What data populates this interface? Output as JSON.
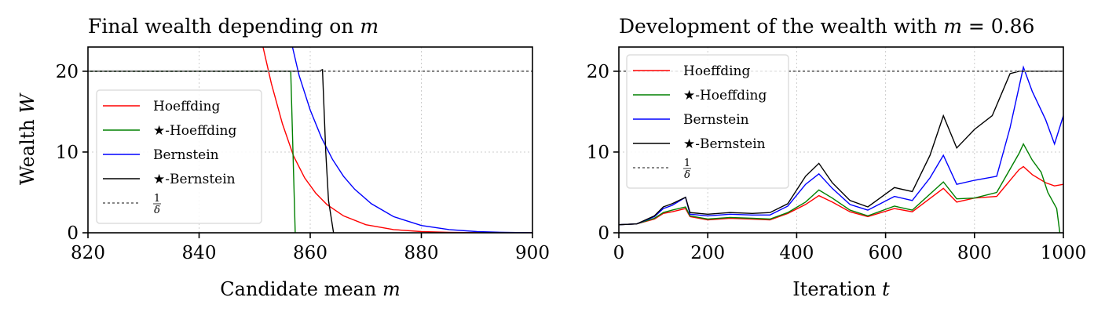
{
  "chart_data": [
    {
      "type": "line",
      "title": "Final wealth depending on m",
      "title_text": "Final wealth depending on ",
      "title_var": "m",
      "xlabel": "Candidate mean m",
      "xlabel_text": "Candidate mean ",
      "xlabel_var": "m",
      "ylabel": "Wealth W",
      "ylabel_text": "Wealth ",
      "ylabel_var": "W",
      "xlim": [
        820,
        900
      ],
      "ylim": [
        0,
        23
      ],
      "xticks": [
        "820",
        "840",
        "860",
        "880",
        "900"
      ],
      "yticks": [
        "0",
        "10",
        "20"
      ],
      "grid": true,
      "legend_position": "center-left",
      "threshold": 20,
      "series": [
        {
          "name": "Hoeffding",
          "color": "#ff0000",
          "x": [
            851.5,
            853,
            855,
            857,
            859,
            861,
            863,
            866,
            870,
            875,
            880,
            885,
            890,
            895,
            900
          ],
          "y": [
            23,
            18.5,
            13.5,
            9.5,
            6.8,
            4.9,
            3.5,
            2.1,
            1.0,
            0.4,
            0.15,
            0.05,
            0.02,
            0.01,
            0
          ]
        },
        {
          "name": "★-Hoeffding",
          "color": "#008000",
          "x": [
            820,
            856.5,
            857.3
          ],
          "y": [
            20,
            20,
            0
          ]
        },
        {
          "name": "Bernstein",
          "color": "#0000ff",
          "x": [
            856.8,
            858,
            860,
            862,
            864,
            866,
            868,
            871,
            875,
            880,
            885,
            890,
            895,
            900
          ],
          "y": [
            23,
            19.5,
            15.2,
            11.8,
            9.1,
            7.0,
            5.4,
            3.6,
            2.0,
            0.9,
            0.4,
            0.15,
            0.05,
            0
          ]
        },
        {
          "name": "★-Bernstein",
          "color": "#000000",
          "x": [
            820,
            861.5,
            862.2,
            862.8,
            863.3,
            864.2
          ],
          "y": [
            20,
            20,
            20.2,
            10,
            4,
            0
          ]
        },
        {
          "name": "1/δ",
          "color": "#888888",
          "x": [
            820,
            900
          ],
          "y": [
            20,
            20
          ]
        }
      ]
    },
    {
      "type": "line",
      "title": "Development of the wealth with m = 0.86",
      "title_text": "Development of the wealth with ",
      "title_var": "m",
      "title_rest": " = 0.86",
      "xlabel": "Iteration t",
      "xlabel_text": "Iteration ",
      "xlabel_var": "t",
      "xlim": [
        0,
        1000
      ],
      "ylim": [
        0,
        23
      ],
      "xticks": [
        "0",
        "200",
        "400",
        "600",
        "800",
        "1000"
      ],
      "yticks": [
        "0",
        "10",
        "20"
      ],
      "grid": true,
      "legend_position": "upper-left",
      "threshold": 20,
      "series": [
        {
          "name": "Hoeffding",
          "color": "#ff0000",
          "x": [
            0,
            40,
            80,
            100,
            120,
            150,
            160,
            200,
            250,
            300,
            340,
            380,
            420,
            450,
            480,
            520,
            560,
            620,
            660,
            730,
            760,
            800,
            850,
            900,
            910,
            930,
            960,
            980,
            1000
          ],
          "y": [
            1,
            1.1,
            1.7,
            2.4,
            2.6,
            3.0,
            2.0,
            1.6,
            1.8,
            1.7,
            1.6,
            2.4,
            3.5,
            4.6,
            3.8,
            2.6,
            2.0,
            3.0,
            2.6,
            5.5,
            3.8,
            4.3,
            4.5,
            7.8,
            8.2,
            7.2,
            6.2,
            5.8,
            6.0
          ]
        },
        {
          "name": "★-Hoeffding",
          "color": "#008000",
          "x": [
            0,
            40,
            80,
            100,
            120,
            150,
            160,
            200,
            250,
            300,
            340,
            380,
            420,
            450,
            480,
            520,
            560,
            620,
            660,
            730,
            760,
            800,
            850,
            900,
            910,
            930,
            950,
            965,
            985,
            992
          ],
          "y": [
            1,
            1.1,
            1.8,
            2.5,
            2.8,
            3.2,
            2.1,
            1.7,
            1.9,
            1.8,
            1.7,
            2.5,
            3.8,
            5.3,
            4.3,
            2.8,
            2.1,
            3.3,
            2.8,
            6.3,
            4.2,
            4.3,
            5.0,
            9.8,
            11.0,
            9.0,
            7.5,
            5.0,
            3.0,
            0
          ]
        },
        {
          "name": "Bernstein",
          "color": "#0000ff",
          "x": [
            0,
            40,
            80,
            100,
            120,
            150,
            160,
            200,
            250,
            300,
            340,
            380,
            420,
            450,
            480,
            520,
            560,
            620,
            660,
            700,
            730,
            760,
            800,
            850,
            880,
            910,
            930,
            960,
            980,
            1000
          ],
          "y": [
            1,
            1.1,
            2.0,
            3.0,
            3.4,
            4.4,
            2.3,
            2.1,
            2.3,
            2.2,
            2.2,
            3.3,
            6.0,
            7.3,
            5.5,
            3.5,
            2.8,
            4.5,
            4.0,
            6.8,
            9.6,
            6.0,
            6.5,
            7.0,
            13.0,
            20.5,
            17.5,
            14.0,
            11.0,
            14.5
          ]
        },
        {
          "name": "★-Bernstein",
          "color": "#000000",
          "x": [
            0,
            40,
            80,
            100,
            120,
            150,
            160,
            200,
            250,
            300,
            340,
            380,
            420,
            450,
            480,
            520,
            560,
            620,
            660,
            700,
            730,
            760,
            800,
            840,
            880,
            900,
            1000
          ],
          "y": [
            1,
            1.1,
            2.1,
            3.2,
            3.6,
            4.4,
            2.5,
            2.3,
            2.5,
            2.4,
            2.5,
            3.6,
            7.0,
            8.6,
            6.2,
            4.0,
            3.2,
            5.6,
            5.1,
            9.6,
            14.5,
            10.5,
            12.8,
            14.5,
            19.7,
            20,
            20
          ]
        },
        {
          "name": "1/δ",
          "color": "#888888",
          "x": [
            0,
            1000
          ],
          "y": [
            20,
            20
          ]
        }
      ]
    }
  ],
  "legend": {
    "entries": [
      "Hoeffding",
      "★-Hoeffding",
      "Bernstein",
      "★-Bernstein"
    ],
    "delta_num": "1",
    "delta_den": "δ"
  }
}
